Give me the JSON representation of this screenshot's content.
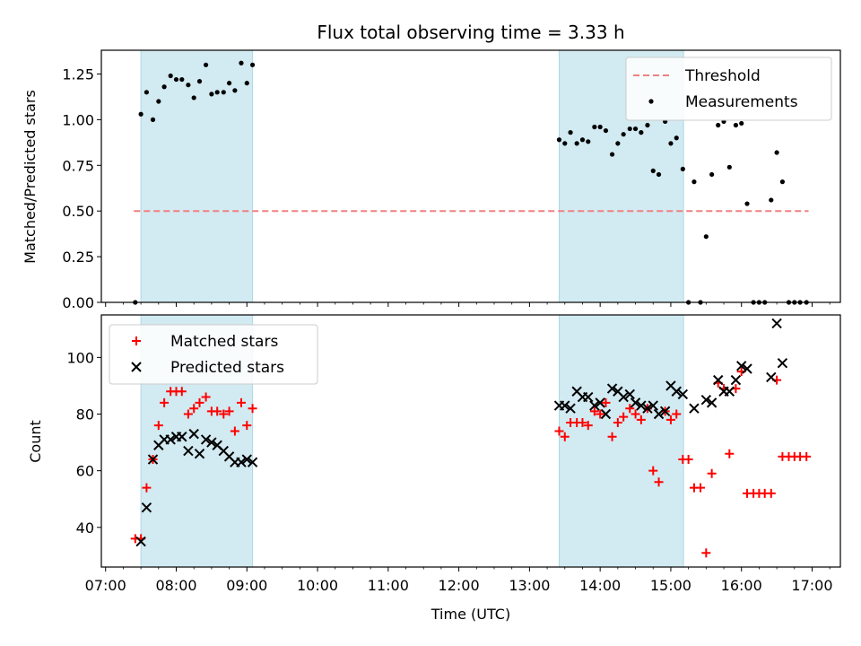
{
  "figure_title": "Flux total observing time = 3.33 h",
  "chart_data": [
    {
      "type": "scatter",
      "ylabel": "Matched/Predicted stars",
      "xlabel": "",
      "x_ticks": [
        "07:00",
        "08:00",
        "09:00",
        "10:00",
        "11:00",
        "12:00",
        "13:00",
        "14:00",
        "15:00",
        "16:00",
        "17:00"
      ],
      "y_ticks": [
        "0.00",
        "0.25",
        "0.50",
        "0.75",
        "1.00",
        "1.25"
      ],
      "xlim": [
        6.94,
        17.4
      ],
      "ylim": [
        0,
        1.38
      ],
      "shaded_spans": [
        [
          7.5,
          9.08
        ],
        [
          13.42,
          15.18
        ]
      ],
      "shade_color": "#add8e6",
      "legend_position": "top-right",
      "threshold": {
        "name": "Threshold",
        "value": 0.5,
        "x": [
          7.4,
          16.95
        ],
        "color": "#f08080"
      },
      "series": [
        {
          "name": "Measurements",
          "color": "#000000",
          "x": [
            7.42,
            7.5,
            7.58,
            7.67,
            7.75,
            7.83,
            7.92,
            8.0,
            8.08,
            8.17,
            8.25,
            8.33,
            8.42,
            8.5,
            8.58,
            8.67,
            8.75,
            8.83,
            8.92,
            9.0,
            9.08,
            13.42,
            13.5,
            13.58,
            13.67,
            13.75,
            13.83,
            13.92,
            14.0,
            14.08,
            14.17,
            14.25,
            14.33,
            14.42,
            14.5,
            14.58,
            14.67,
            14.75,
            14.83,
            14.92,
            15.0,
            15.08,
            15.17,
            15.25,
            15.33,
            15.42,
            15.5,
            15.58,
            15.67,
            15.75,
            15.83,
            15.92,
            16.0,
            16.08,
            16.17,
            16.25,
            16.33,
            16.42,
            16.5,
            16.58,
            16.67,
            16.75,
            16.83,
            16.92
          ],
          "y": [
            0.0,
            1.03,
            1.15,
            1.0,
            1.1,
            1.18,
            1.24,
            1.22,
            1.22,
            1.19,
            1.12,
            1.21,
            1.3,
            1.14,
            1.15,
            1.15,
            1.2,
            1.16,
            1.31,
            1.2,
            1.3,
            0.89,
            0.87,
            0.93,
            0.87,
            0.89,
            0.88,
            0.96,
            0.96,
            0.94,
            0.81,
            0.87,
            0.92,
            0.95,
            0.95,
            0.93,
            0.97,
            0.72,
            0.7,
            0.99,
            0.87,
            0.9,
            0.73,
            0.0,
            0.66,
            0.0,
            0.36,
            0.7,
            0.97,
            0.99,
            0.74,
            0.97,
            0.98,
            0.54,
            0.0,
            0.0,
            0.0,
            0.56,
            0.82,
            0.66,
            0.0,
            0.0,
            0.0,
            0.0
          ]
        }
      ]
    },
    {
      "type": "scatter",
      "ylabel": "Count",
      "xlabel": "Time (UTC)",
      "x_ticks": [
        "07:00",
        "08:00",
        "09:00",
        "10:00",
        "11:00",
        "12:00",
        "13:00",
        "14:00",
        "15:00",
        "16:00",
        "17:00"
      ],
      "y_ticks": [
        "40",
        "60",
        "80",
        "100"
      ],
      "xlim": [
        6.94,
        17.4
      ],
      "ylim": [
        26,
        115
      ],
      "shaded_spans": [
        [
          7.5,
          9.08
        ],
        [
          13.42,
          15.18
        ]
      ],
      "shade_color": "#add8e6",
      "legend_position": "top-left",
      "series": [
        {
          "name": "Matched stars",
          "marker": "plus",
          "color": "#ff0000",
          "x": [
            7.42,
            7.5,
            7.58,
            7.67,
            7.75,
            7.83,
            7.92,
            8.0,
            8.08,
            8.17,
            8.25,
            8.33,
            8.42,
            8.5,
            8.58,
            8.67,
            8.75,
            8.83,
            8.92,
            9.0,
            9.08,
            13.42,
            13.5,
            13.58,
            13.67,
            13.75,
            13.83,
            13.92,
            14.0,
            14.08,
            14.17,
            14.25,
            14.33,
            14.42,
            14.5,
            14.58,
            14.67,
            14.75,
            14.83,
            14.92,
            15.0,
            15.08,
            15.17,
            15.25,
            15.33,
            15.42,
            15.5,
            15.58,
            15.67,
            15.75,
            15.83,
            15.92,
            16.0,
            16.08,
            16.17,
            16.25,
            16.33,
            16.42,
            16.5,
            16.58,
            16.67,
            16.75,
            16.83,
            16.92
          ],
          "y": [
            36,
            36,
            54,
            64,
            76,
            84,
            88,
            88,
            88,
            80,
            82,
            84,
            86,
            81,
            81,
            80,
            81,
            74,
            84,
            76,
            82,
            74,
            72,
            77,
            77,
            77,
            76,
            81,
            80,
            84,
            72,
            77,
            79,
            82,
            80,
            78,
            82,
            60,
            56,
            81,
            78,
            80,
            64,
            64,
            54,
            54,
            31,
            59,
            91,
            89,
            66,
            89,
            95,
            52,
            52,
            52,
            52,
            52,
            92,
            65,
            65,
            65,
            65,
            65
          ]
        },
        {
          "name": "Predicted stars",
          "marker": "x",
          "color": "#000000",
          "x": [
            7.5,
            7.58,
            7.67,
            7.75,
            7.83,
            7.92,
            8.0,
            8.08,
            8.17,
            8.25,
            8.33,
            8.42,
            8.5,
            8.58,
            8.67,
            8.75,
            8.83,
            8.92,
            9.0,
            9.08,
            13.42,
            13.5,
            13.58,
            13.67,
            13.75,
            13.83,
            13.92,
            14.0,
            14.08,
            14.17,
            14.25,
            14.33,
            14.42,
            14.5,
            14.58,
            14.67,
            14.75,
            14.83,
            14.92,
            15.0,
            15.08,
            15.17,
            15.33,
            15.5,
            15.58,
            15.67,
            15.75,
            15.83,
            15.92,
            16.0,
            16.08,
            16.42,
            16.5,
            16.58
          ],
          "y": [
            35,
            47,
            64,
            69,
            71,
            71,
            72,
            72,
            67,
            73,
            66,
            71,
            70,
            69,
            67,
            65,
            63,
            63,
            64,
            63,
            83,
            83,
            82,
            88,
            86,
            86,
            83,
            84,
            80,
            89,
            88,
            86,
            87,
            84,
            83,
            82,
            83,
            80,
            81,
            90,
            88,
            87,
            82,
            85,
            84,
            92,
            88,
            88,
            92,
            97,
            96,
            93,
            112,
            98
          ]
        }
      ]
    }
  ]
}
